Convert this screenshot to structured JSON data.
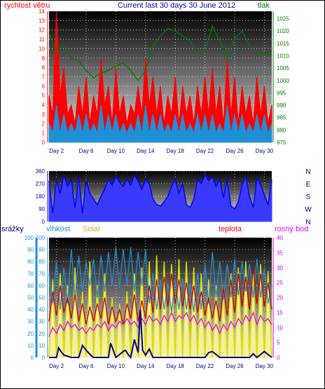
{
  "chart_data": [
    {
      "type": "line",
      "title": "Current last 30 days 30 June 2012",
      "left_axis_label": "rychlost větru",
      "right_axis_label": "tlak",
      "ylim_left": [
        0,
        14
      ],
      "ylim_right": [
        975,
        1028
      ],
      "left_ticks": [
        "0",
        "1",
        "2",
        "3",
        "4",
        "5",
        "6",
        "7",
        "8",
        "9",
        "10",
        "11",
        "12",
        "13",
        "14"
      ],
      "right_ticks": [
        "975",
        "980",
        "985",
        "990",
        "995",
        "1000",
        "1005",
        "1010",
        "1015",
        "1020",
        "1025"
      ],
      "x_ticks": [
        "Day 2",
        "Day 6",
        "Day 10",
        "Day 14",
        "Day 18",
        "Day 22",
        "Day 26",
        "Day 30"
      ],
      "xlim": [
        1,
        31
      ],
      "series": [
        {
          "color": "#ff0000",
          "x": [
            1,
            1.5,
            2,
            2.5,
            3,
            3.5,
            4,
            4.5,
            5,
            5.5,
            6,
            6.5,
            7,
            7.5,
            8,
            8.5,
            9,
            9.5,
            10,
            10.5,
            11,
            11.5,
            12,
            12.5,
            13,
            13.5,
            14,
            14.5,
            15,
            15.5,
            16,
            16.5,
            17,
            17.5,
            18,
            18.5,
            19,
            19.5,
            20,
            20.5,
            21,
            21.5,
            22,
            22.5,
            23,
            23.5,
            24,
            24.5,
            25,
            25.5,
            26,
            26.5,
            27,
            27.5,
            28,
            28.5,
            29,
            29.5,
            30,
            30.5,
            31
          ],
          "values": [
            5,
            3,
            14,
            5,
            8,
            3,
            4,
            2,
            6,
            3,
            7,
            2,
            5,
            3,
            9,
            4,
            6,
            2,
            8,
            3,
            5,
            2,
            4,
            3,
            6,
            3,
            9,
            4,
            7,
            3,
            6,
            2,
            5,
            3,
            7,
            2,
            6,
            3,
            5,
            2,
            6,
            3,
            7,
            3,
            8,
            3,
            6,
            2,
            9,
            3,
            7,
            2,
            6,
            3,
            5,
            2,
            7,
            3,
            6,
            2,
            4
          ]
        },
        {
          "color": "#1f8fd6",
          "x": [
            1,
            1.5,
            2,
            2.5,
            3,
            3.5,
            4,
            4.5,
            5,
            5.5,
            6,
            6.5,
            7,
            7.5,
            8,
            8.5,
            9,
            9.5,
            10,
            10.5,
            11,
            11.5,
            12,
            12.5,
            13,
            13.5,
            14,
            14.5,
            15,
            15.5,
            16,
            16.5,
            17,
            17.5,
            18,
            18.5,
            19,
            19.5,
            20,
            20.5,
            21,
            21.5,
            22,
            22.5,
            23,
            23.5,
            24,
            24.5,
            25,
            25.5,
            26,
            26.5,
            27,
            27.5,
            28,
            28.5,
            29,
            29.5,
            30,
            30.5,
            31
          ],
          "values": [
            2,
            1,
            4,
            1,
            3,
            1,
            2,
            1,
            3,
            1,
            3,
            1,
            2,
            1,
            4,
            1,
            3,
            1,
            3,
            1,
            2,
            1,
            2,
            1,
            3,
            1,
            4,
            1,
            3,
            1,
            3,
            1,
            2,
            1,
            3,
            1,
            3,
            1,
            2,
            1,
            3,
            1,
            3,
            1,
            3,
            1,
            2,
            1,
            4,
            1,
            3,
            1,
            3,
            1,
            2,
            1,
            3,
            1,
            3,
            1,
            2
          ]
        },
        {
          "color": "#007a00",
          "axis": "right",
          "x": [
            1,
            2,
            3,
            4,
            5,
            6,
            7,
            8,
            9,
            10,
            11,
            12,
            13,
            14,
            15,
            16,
            17,
            18,
            19,
            20,
            21,
            22,
            23,
            24,
            25,
            26,
            27,
            28,
            29,
            30,
            31
          ],
          "values": [
            1019,
            1012,
            1014,
            1009,
            1008,
            1004,
            1001,
            1003,
            1004,
            1006,
            1007,
            1004,
            1000,
            1004,
            1014,
            1018,
            1021,
            1020,
            1018,
            1016,
            1011,
            1012,
            1022,
            1016,
            1009,
            1017,
            1020,
            1014,
            1011,
            1011,
            1010
          ]
        }
      ]
    },
    {
      "type": "line",
      "ylim": [
        0,
        360
      ],
      "y_ticks": [
        "0",
        "90",
        "180",
        "270",
        "360"
      ],
      "right_labels": [
        "N",
        "W",
        "S",
        "E",
        "N"
      ],
      "series": [
        {
          "color": "#0000ff",
          "x": [
            1,
            1.5,
            2,
            2.5,
            3,
            3.5,
            4,
            4.5,
            5,
            5.5,
            6,
            6.5,
            7,
            7.5,
            8,
            8.5,
            9,
            9.5,
            10,
            10.5,
            11,
            11.5,
            12,
            12.5,
            13,
            13.5,
            14,
            14.5,
            15,
            15.5,
            16,
            16.5,
            17,
            17.5,
            18,
            18.5,
            19,
            19.5,
            20,
            20.5,
            21,
            21.5,
            22,
            22.5,
            23,
            23.5,
            24,
            24.5,
            25,
            25.5,
            26,
            26.5,
            27,
            27.5,
            28,
            28.5,
            29,
            29.5,
            30,
            30.5,
            31
          ],
          "values": [
            290,
            60,
            300,
            200,
            330,
            250,
            300,
            100,
            320,
            60,
            290,
            200,
            160,
            120,
            180,
            230,
            300,
            260,
            320,
            280,
            250,
            300,
            260,
            330,
            290,
            230,
            300,
            270,
            160,
            120,
            110,
            140,
            180,
            250,
            300,
            200,
            270,
            120,
            100,
            160,
            300,
            270,
            330,
            290,
            320,
            250,
            300,
            170,
            300,
            110,
            90,
            140,
            260,
            320,
            180,
            100,
            310,
            260,
            190,
            120,
            300
          ]
        }
      ]
    },
    {
      "type": "line",
      "left_axis_label": "srážky",
      "axis_labels": [
        "vlhkost",
        "Solar",
        "teplota",
        "rosný bod"
      ],
      "ylim_left": [
        0,
        100
      ],
      "ylim_right": [
        0,
        40
      ],
      "left_ticks": [
        "0",
        "10",
        "20",
        "30",
        "40",
        "50",
        "60",
        "70",
        "80",
        "90",
        "100"
      ],
      "right_ticks": [
        "0",
        "5",
        "10",
        "15",
        "20",
        "25",
        "30",
        "35",
        "40"
      ],
      "x_ticks": [
        "Day 2",
        "Day 6",
        "Day 10",
        "Day 14",
        "Day 18",
        "Day 22",
        "Day 26",
        "Day 30"
      ],
      "series": [
        {
          "color": "#1f8fd6",
          "axis": "left",
          "x": [
            1,
            1.5,
            2,
            2.5,
            3,
            3.5,
            4,
            4.5,
            5,
            5.5,
            6,
            6.5,
            7,
            7.5,
            8,
            8.5,
            9,
            9.5,
            10,
            10.5,
            11,
            11.5,
            12,
            12.5,
            13,
            13.5,
            14,
            14.5,
            15,
            15.5,
            16,
            16.5,
            17,
            17.5,
            18,
            18.5,
            19,
            19.5,
            20,
            20.5,
            21,
            21.5,
            22,
            22.5,
            23,
            23.5,
            24,
            24.5,
            25,
            25.5,
            26,
            26.5,
            27,
            27.5,
            28,
            28.5,
            29,
            29.5,
            30,
            30.5,
            31
          ],
          "values": [
            70,
            45,
            80,
            40,
            75,
            45,
            90,
            50,
            85,
            55,
            80,
            60,
            82,
            50,
            85,
            55,
            88,
            60,
            92,
            58,
            90,
            60,
            92,
            55,
            88,
            60,
            90,
            45,
            70,
            40,
            65,
            40,
            62,
            38,
            65,
            40,
            66,
            40,
            62,
            38,
            70,
            40,
            78,
            45,
            88,
            50,
            80,
            48,
            78,
            50,
            82,
            52,
            80,
            55,
            78,
            50,
            82,
            50,
            75,
            45,
            60
          ]
        },
        {
          "color": "#dddd00",
          "axis": "left",
          "x": [
            1,
            1.5,
            2,
            2.5,
            3,
            3.5,
            4,
            4.5,
            5,
            5.5,
            6,
            6.5,
            7,
            7.5,
            8,
            8.5,
            9,
            9.5,
            10,
            10.5,
            11,
            11.5,
            12,
            12.5,
            13,
            13.5,
            14,
            14.5,
            15,
            15.5,
            16,
            16.5,
            17,
            17.5,
            18,
            18.5,
            19,
            19.5,
            20,
            20.5,
            21,
            21.5,
            22,
            22.5,
            23,
            23.5,
            24,
            24.5,
            25,
            25.5,
            26,
            26.5,
            27,
            27.5,
            28,
            28.5,
            29,
            29.5,
            30,
            30.5,
            31
          ],
          "values": [
            0,
            65,
            0,
            70,
            0,
            60,
            0,
            75,
            0,
            55,
            0,
            80,
            0,
            60,
            0,
            70,
            0,
            50,
            0,
            45,
            0,
            55,
            0,
            70,
            0,
            75,
            0,
            80,
            0,
            85,
            0,
            80,
            0,
            78,
            0,
            82,
            0,
            80,
            0,
            75,
            0,
            70,
            0,
            65,
            0,
            60,
            0,
            55,
            0,
            70,
            0,
            75,
            0,
            80,
            0,
            70,
            0,
            78,
            0,
            72,
            0
          ]
        },
        {
          "color": "#cc0000",
          "axis": "right",
          "x": [
            1,
            1.5,
            2,
            2.5,
            3,
            3.5,
            4,
            4.5,
            5,
            5.5,
            6,
            6.5,
            7,
            7.5,
            8,
            8.5,
            9,
            9.5,
            10,
            10.5,
            11,
            11.5,
            12,
            12.5,
            13,
            13.5,
            14,
            14.5,
            15,
            15.5,
            16,
            16.5,
            17,
            17.5,
            18,
            18.5,
            19,
            19.5,
            20,
            20.5,
            21,
            21.5,
            22,
            22.5,
            23,
            23.5,
            24,
            24.5,
            25,
            25.5,
            26,
            26.5,
            27,
            27.5,
            28,
            28.5,
            29,
            29.5,
            30,
            30.5,
            31
          ],
          "values": [
            12,
            22,
            14,
            24,
            15,
            20,
            13,
            21,
            12,
            18,
            11,
            17,
            12,
            18,
            13,
            20,
            11,
            17,
            12,
            16,
            11,
            18,
            13,
            21,
            12,
            19,
            13,
            24,
            15,
            26,
            16,
            27,
            17,
            28,
            18,
            26,
            17,
            25,
            16,
            24,
            15,
            22,
            14,
            20,
            13,
            19,
            12,
            23,
            14,
            26,
            15,
            28,
            17,
            27,
            16,
            30,
            18,
            28,
            17,
            25,
            16
          ]
        },
        {
          "color": "#ee00ee",
          "axis": "right",
          "x": [
            1,
            1.5,
            2,
            2.5,
            3,
            3.5,
            4,
            4.5,
            5,
            5.5,
            6,
            6.5,
            7,
            7.5,
            8,
            8.5,
            9,
            9.5,
            10,
            10.5,
            11,
            11.5,
            12,
            12.5,
            13,
            13.5,
            14,
            14.5,
            15,
            15.5,
            16,
            16.5,
            17,
            17.5,
            18,
            18.5,
            19,
            19.5,
            20,
            20.5,
            21,
            21.5,
            22,
            22.5,
            23,
            23.5,
            24,
            24.5,
            25,
            25.5,
            26,
            26.5,
            27,
            27.5,
            28,
            28.5,
            29,
            29.5,
            30,
            30.5,
            31
          ],
          "values": [
            7,
            10,
            8,
            11,
            9,
            12,
            10,
            11,
            9,
            10,
            8,
            10,
            9,
            11,
            10,
            12,
            9,
            11,
            10,
            12,
            11,
            13,
            11,
            12,
            10,
            13,
            11,
            14,
            12,
            13,
            11,
            14,
            12,
            15,
            12,
            14,
            13,
            15,
            12,
            14,
            11,
            13,
            10,
            12,
            9,
            11,
            8,
            11,
            9,
            12,
            10,
            13,
            11,
            14,
            12,
            15,
            11,
            14,
            12,
            13,
            11
          ]
        },
        {
          "color": "#00008b",
          "axis": "left",
          "x": [
            1,
            2,
            2.3,
            2.6,
            3,
            4,
            5,
            5.5,
            6,
            6.3,
            6.6,
            7,
            8,
            9,
            9.3,
            10,
            11,
            11.3,
            11.6,
            12,
            12.5,
            13,
            13.3,
            13.6,
            14,
            14.5,
            15,
            16,
            17,
            18,
            19,
            20,
            21,
            22,
            22.5,
            23,
            24,
            25,
            26,
            27,
            28,
            28.5,
            29,
            30,
            31
          ],
          "values": [
            0,
            0,
            8,
            5,
            2,
            0,
            0,
            10,
            6,
            4,
            2,
            0,
            0,
            0,
            12,
            0,
            5,
            6,
            3,
            0,
            15,
            4,
            40,
            6,
            2,
            7,
            0,
            0,
            0,
            0,
            0,
            0,
            0,
            0,
            4,
            5,
            0,
            0,
            0,
            0,
            0,
            3,
            0,
            5,
            0
          ]
        }
      ]
    }
  ]
}
